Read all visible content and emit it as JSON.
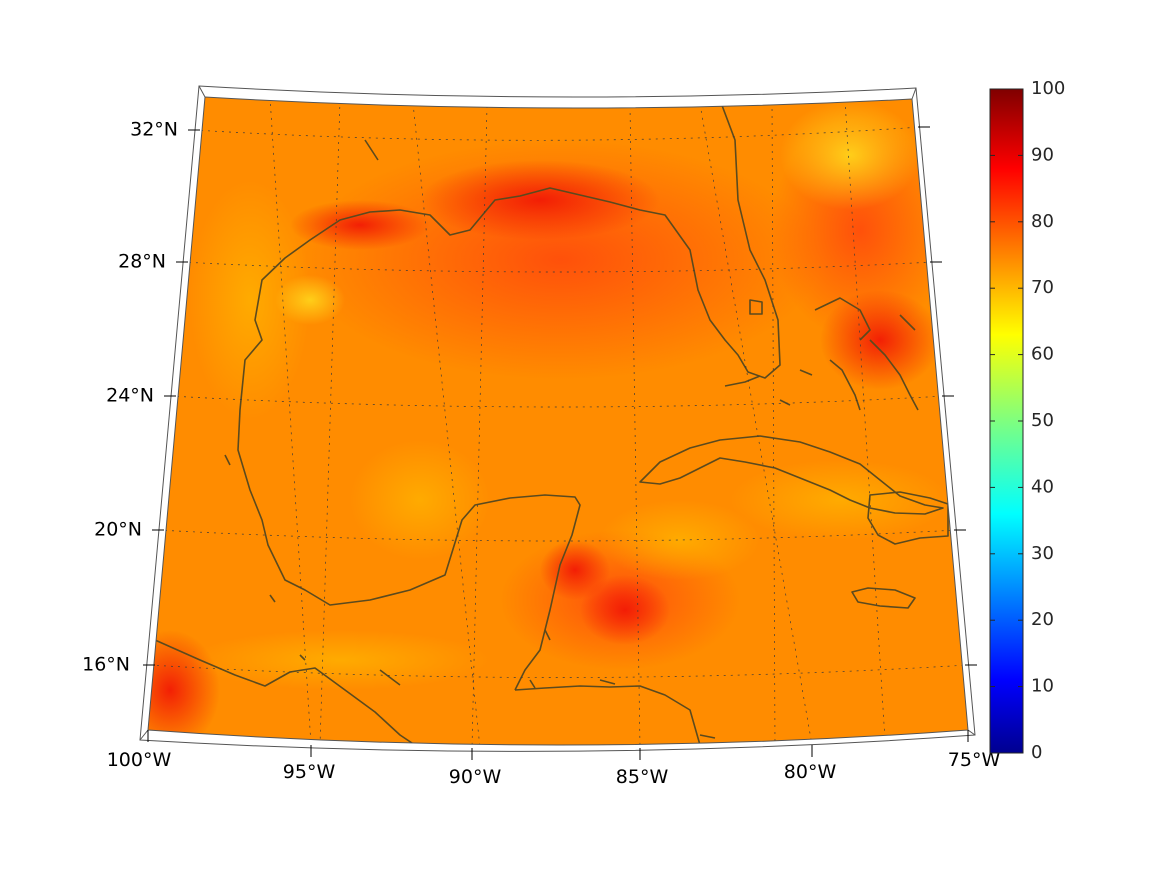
{
  "map": {
    "lon_labels": [
      "100°W",
      "95°W",
      "90°W",
      "85°W",
      "80°W",
      "75°W"
    ],
    "lat_labels": [
      "32°N",
      "28°N",
      "24°N",
      "20°N",
      "16°N"
    ],
    "extent": {
      "lon": [
        -100,
        -75
      ],
      "lat": [
        14,
        33
      ]
    },
    "colormap": "jet",
    "coastline_color": "#5b4a1e"
  },
  "colorbar": {
    "ticks": [
      "0",
      "10",
      "20",
      "30",
      "40",
      "50",
      "60",
      "70",
      "80",
      "90",
      "100"
    ],
    "range": [
      0,
      100
    ]
  }
}
